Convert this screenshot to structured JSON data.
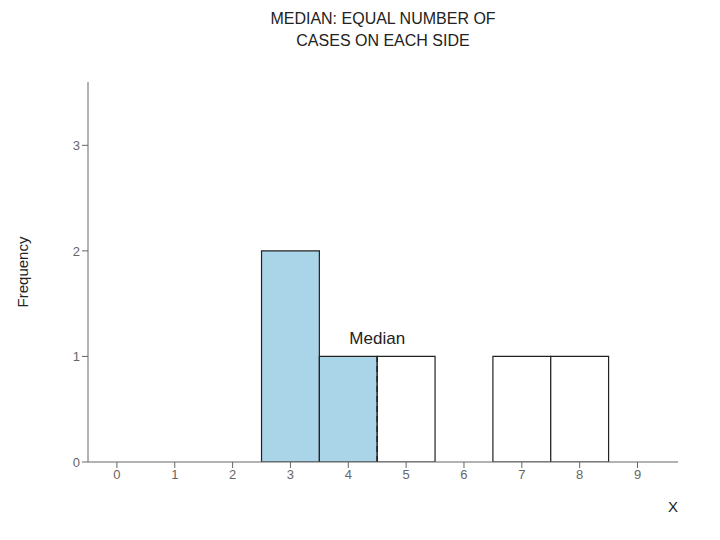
{
  "chart_data": {
    "type": "bar",
    "title": "MEDIAN: EQUAL NUMBER OF\nCASES ON EACH SIDE",
    "x_label": "X",
    "y_label": "Frequency",
    "x": [
      3,
      4,
      5,
      7,
      8
    ],
    "values": [
      2,
      1,
      1,
      1,
      1
    ],
    "colors": [
      "#aad4e8",
      "#aad4e8",
      "#ffffff",
      "#ffffff",
      "#ffffff"
    ],
    "xlim": [
      -0.5,
      9.7
    ],
    "xticks": [
      0,
      1,
      2,
      3,
      4,
      5,
      6,
      7,
      8,
      9
    ],
    "ylim": [
      0,
      3.6
    ],
    "yticks": [
      0,
      1,
      2,
      3
    ],
    "grid": false,
    "annotations": [
      {
        "text": "Median",
        "x": 4.5,
        "y_from": 0,
        "y_to": 1
      }
    ]
  }
}
